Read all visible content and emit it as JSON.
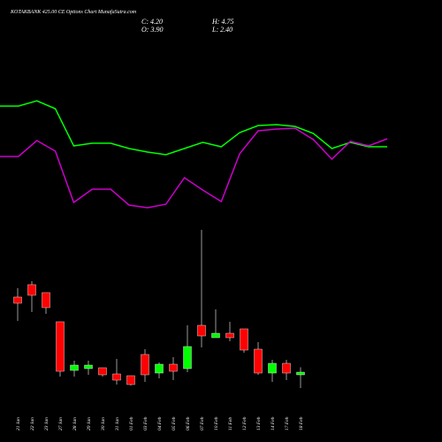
{
  "chart_data": [
    {
      "type": "candlestick",
      "title": "KOTAKBANK 425.00 CE Options Chart MunafaSutra.com",
      "annotations": [
        "C: 4.20",
        "O: 3.90",
        "H: 4.75",
        "L: 2.40"
      ],
      "categories": [
        "21 Jan",
        "22 Jan",
        "23 Jan",
        "27 Jan",
        "28 Jan",
        "29 Jan",
        "30 Jan",
        "31 Jan",
        "01 Feb",
        "03 Feb",
        "04 Feb",
        "05 Feb",
        "06 Feb",
        "07 Feb",
        "10 Feb",
        "11 Feb",
        "12 Feb",
        "13 Feb",
        "14 Feb",
        "17 Feb",
        "18 Feb"
      ],
      "open": [
        12.7,
        14.1,
        13.2,
        9.9,
        4.4,
        4.6,
        4.7,
        4.0,
        3.8,
        6.2,
        4.1,
        5.1,
        4.6,
        9.5,
        8.1,
        8.6,
        9.1,
        6.8,
        4.1,
        5.2,
        3.9
      ],
      "high": [
        13.7,
        14.5,
        13.2,
        9.9,
        5.5,
        5.5,
        4.7,
        5.7,
        3.8,
        6.8,
        5.3,
        5.9,
        9.5,
        20.3,
        11.3,
        9.9,
        9.1,
        7.6,
        5.6,
        5.6,
        4.75
      ],
      "low": [
        10.0,
        11.0,
        10.8,
        3.7,
        3.7,
        3.9,
        3.7,
        2.8,
        2.7,
        3.1,
        3.5,
        3.3,
        4.2,
        7.0,
        8.1,
        7.7,
        6.4,
        3.9,
        3.1,
        3.3,
        2.4
      ],
      "close": [
        12.0,
        12.9,
        11.5,
        4.3,
        5.0,
        5.0,
        3.9,
        3.3,
        2.8,
        3.9,
        5.1,
        4.3,
        7.1,
        8.3,
        8.6,
        8.1,
        6.7,
        4.1,
        5.2,
        4.1,
        4.2
      ],
      "up_color": "#00ff00",
      "down_color": "#ff0000",
      "ylim": [
        2.3,
        21.3
      ]
    },
    {
      "type": "line",
      "series": [
        {
          "color": "#00ff00",
          "values": [
            13.0,
            13.0,
            13.6,
            12.7,
            8.5,
            8.8,
            8.8,
            8.2,
            7.8,
            7.5,
            8.2,
            8.9,
            8.4,
            10.0,
            10.8,
            10.9,
            10.7,
            9.9,
            8.2,
            8.9,
            8.4,
            8.4
          ]
        },
        {
          "color": "#cc00cc",
          "values": [
            7.3,
            7.3,
            9.1,
            7.9,
            2.1,
            3.6,
            3.6,
            1.8,
            1.5,
            1.9,
            4.9,
            3.5,
            2.2,
            7.6,
            10.2,
            10.4,
            10.5,
            9.2,
            7.0,
            9.0,
            8.5,
            9.3
          ]
        }
      ],
      "ylim": [
        0,
        14
      ]
    }
  ]
}
